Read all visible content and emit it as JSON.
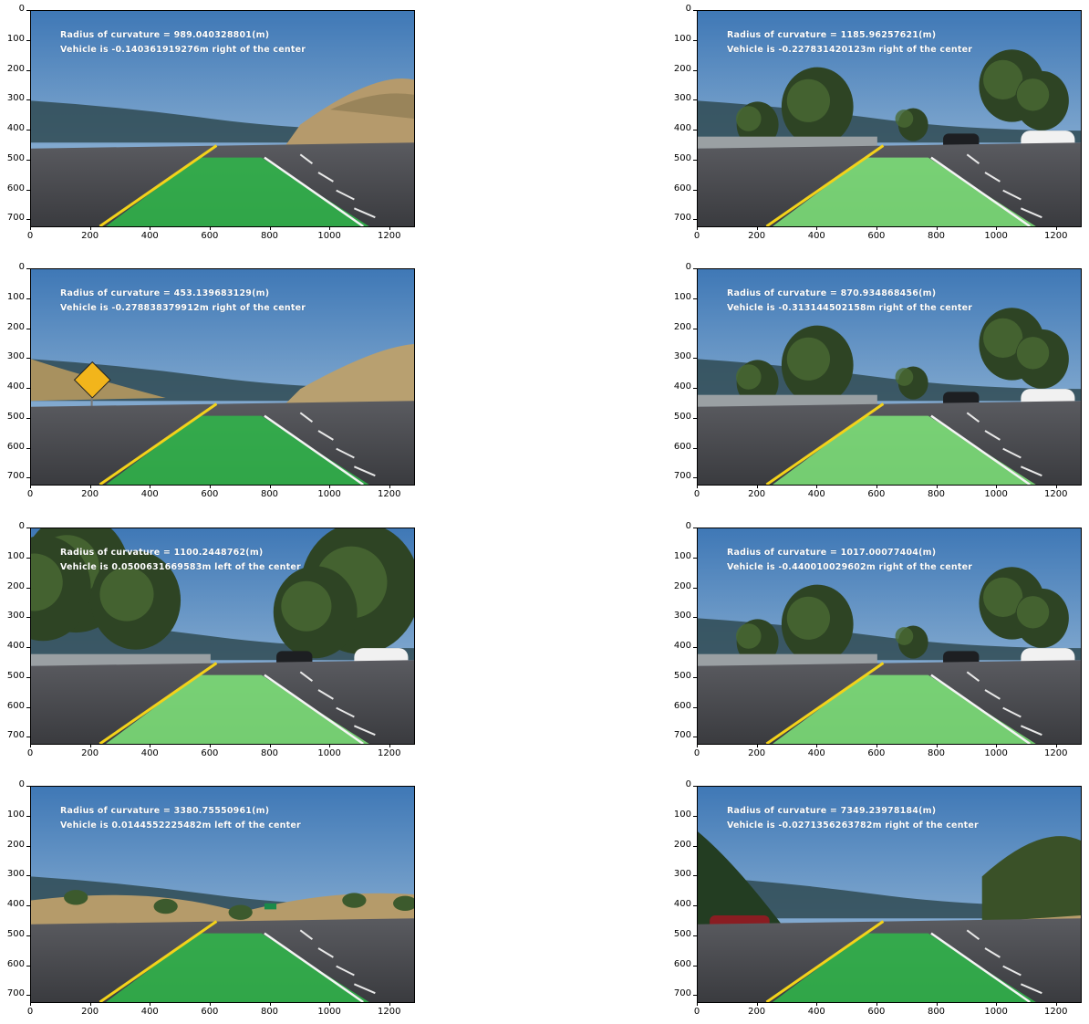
{
  "figure": {
    "panels": [
      {
        "id": "p1",
        "scene": "hills_right",
        "overlay": {
          "line1": "Radius of curvature = 989.040328801(m)",
          "line2": "Vehicle is -0.140361919276m right of the center"
        }
      },
      {
        "id": "p2",
        "scene": "trees_bridge",
        "overlay": {
          "line1": "Radius of curvature = 1185.96257621(m)",
          "line2": "Vehicle is -0.227831420123m right of the center"
        }
      },
      {
        "id": "p3",
        "scene": "deer_sign",
        "overlay": {
          "line1": "Radius of curvature = 453.139683129(m)",
          "line2": "Vehicle is -0.278838379912m right of the center"
        }
      },
      {
        "id": "p4",
        "scene": "trees_bridge",
        "overlay": {
          "line1": "Radius of curvature = 870.934868456(m)",
          "line2": "Vehicle is -0.313144502158m right of the center"
        }
      },
      {
        "id": "p5",
        "scene": "dense_trees",
        "overlay": {
          "line1": "Radius of curvature = 1100.2448762(m)",
          "line2": "Vehicle is 0.0500631669583m left of the center"
        }
      },
      {
        "id": "p6",
        "scene": "trees_bridge",
        "overlay": {
          "line1": "Radius of curvature = 1017.00077404(m)",
          "line2": "Vehicle is -0.440010029602m right of the center"
        }
      },
      {
        "id": "p7",
        "scene": "open_hills",
        "overlay": {
          "line1": "Radius of curvature = 3380.75550961(m)",
          "line2": "Vehicle is 0.0144552225482m left of the center"
        }
      },
      {
        "id": "p8",
        "scene": "straight_trees",
        "overlay": {
          "line1": "Radius of curvature = 7349.23978184(m)",
          "line2": "Vehicle is -0.0271356263782m right of the center"
        }
      }
    ],
    "axis": {
      "x_ticks": [
        "0",
        "200",
        "400",
        "600",
        "800",
        "1000",
        "1200"
      ],
      "y_ticks": [
        "0",
        "100",
        "200",
        "300",
        "400",
        "500",
        "600",
        "700"
      ],
      "x_max": 1280,
      "y_max": 720
    },
    "colors": {
      "lane_fill": "#2fb84a",
      "lane_fill_light": "#7fe67a",
      "road": "#45474c",
      "sky_top": "#3f78b6",
      "sky_bottom": "#a9c6de",
      "yellow_line": "#f3d21a"
    }
  }
}
